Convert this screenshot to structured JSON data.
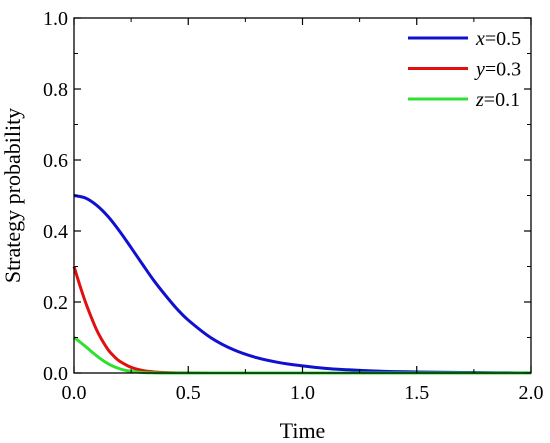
{
  "chart_data": {
    "type": "line",
    "title": "",
    "xlabel": "Time",
    "ylabel": "Strategy probability",
    "xlim": [
      0,
      2.0
    ],
    "ylim": [
      0,
      1.0
    ],
    "x_ticks": [
      "0.0",
      "0.5",
      "1.0",
      "1.5",
      "2.0"
    ],
    "y_ticks": [
      "0.0",
      "0.2",
      "0.4",
      "0.6",
      "0.8",
      "1.0"
    ],
    "grid": false,
    "legend_position": "top-right",
    "series": [
      {
        "name": "x=0.5",
        "var": "x",
        "eq": "=0.5",
        "color": "#1010d0",
        "x": [
          0,
          0.05,
          0.1,
          0.15,
          0.2,
          0.25,
          0.3,
          0.35,
          0.4,
          0.45,
          0.5,
          0.6,
          0.7,
          0.8,
          0.9,
          1.0,
          1.1,
          1.2,
          1.3,
          1.4,
          1.5,
          1.6,
          1.7,
          1.8,
          1.9,
          2.0
        ],
        "y": [
          0.5,
          0.493,
          0.472,
          0.44,
          0.399,
          0.353,
          0.306,
          0.26,
          0.219,
          0.181,
          0.149,
          0.099,
          0.065,
          0.043,
          0.029,
          0.02,
          0.013,
          0.009,
          0.006,
          0.004,
          0.003,
          0.002,
          0.0015,
          0.001,
          0.0006,
          0.0004
        ]
      },
      {
        "name": "y=0.3",
        "var": "y",
        "eq": "=0.3",
        "color": "#e01010",
        "x": [
          0,
          0.025,
          0.05,
          0.075,
          0.1,
          0.125,
          0.15,
          0.175,
          0.2,
          0.25,
          0.3,
          0.35,
          0.4,
          0.45,
          0.5,
          0.6,
          0.8,
          1.0,
          2.0
        ],
        "y": [
          0.3,
          0.248,
          0.2,
          0.158,
          0.12,
          0.09,
          0.065,
          0.047,
          0.033,
          0.016,
          0.007,
          0.003,
          0.0013,
          0.0005,
          0.0002,
          0.0,
          0.0,
          0.0,
          0.0
        ]
      },
      {
        "name": "z=0.1",
        "var": "z",
        "eq": "=0.1",
        "color": "#30e030",
        "x": [
          0,
          0.025,
          0.05,
          0.075,
          0.1,
          0.125,
          0.15,
          0.175,
          0.2,
          0.225,
          0.25,
          0.3,
          0.35,
          0.4,
          0.5,
          2.0
        ],
        "y": [
          0.1,
          0.088,
          0.075,
          0.061,
          0.048,
          0.036,
          0.026,
          0.018,
          0.012,
          0.0075,
          0.0045,
          0.0015,
          0.0005,
          0.0001,
          0.0,
          0.0
        ]
      }
    ]
  }
}
